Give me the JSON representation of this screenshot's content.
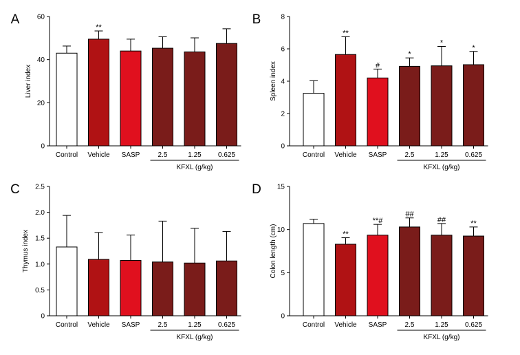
{
  "colors": {
    "Control": "#ffffff",
    "Vehicle": "#b01214",
    "SASP": "#e0101e",
    "KFXL": "#7a1c1a"
  },
  "chart_data": [
    {
      "panel": "A",
      "type": "bar",
      "ylabel": "Liver index",
      "ylim": [
        0,
        60
      ],
      "yticks": [
        "0",
        "20",
        "40",
        "60"
      ],
      "ytick_values": [
        0,
        20,
        40,
        60
      ],
      "categories": [
        "Control",
        "Vehicle",
        "SASP",
        "2.5",
        "1.25",
        "0.625"
      ],
      "group_label": "KFXL (g/kg)",
      "values": [
        43.0,
        49.5,
        44.0,
        45.3,
        43.6,
        47.5
      ],
      "errors": [
        3.3,
        3.8,
        5.5,
        5.3,
        6.5,
        6.8
      ],
      "significance": [
        "",
        "**",
        "",
        "",
        "",
        ""
      ]
    },
    {
      "panel": "B",
      "type": "bar",
      "ylabel": "Spleen index",
      "ylim": [
        0,
        8
      ],
      "yticks": [
        "0",
        "2",
        "4",
        "6",
        "8"
      ],
      "ytick_values": [
        0,
        2,
        4,
        6,
        8
      ],
      "categories": [
        "Control",
        "Vehicle",
        "SASP",
        "2.5",
        "1.25",
        "0.625"
      ],
      "group_label": "KFXL (g/kg)",
      "values": [
        3.25,
        5.65,
        4.2,
        4.92,
        4.95,
        5.02
      ],
      "errors": [
        0.78,
        1.1,
        0.55,
        0.52,
        1.2,
        0.82
      ],
      "significance": [
        "",
        "**",
        "#",
        "*",
        "*",
        "*"
      ]
    },
    {
      "panel": "C",
      "type": "bar",
      "ylabel": "Thymus index",
      "ylim": [
        0,
        2.5
      ],
      "yticks": [
        "0",
        "0.5",
        "1.0",
        "1.5",
        "2.0",
        "2.5"
      ],
      "ytick_values": [
        0,
        0.5,
        1.0,
        1.5,
        2.0,
        2.5
      ],
      "categories": [
        "Control",
        "Vehicle",
        "SASP",
        "2.5",
        "1.25",
        "0.625"
      ],
      "group_label": "KFXL (g/kg)",
      "values": [
        1.33,
        1.09,
        1.07,
        1.04,
        1.02,
        1.06
      ],
      "errors": [
        0.61,
        0.52,
        0.49,
        0.79,
        0.67,
        0.57
      ],
      "significance": [
        "",
        "",
        "",
        "",
        "",
        ""
      ]
    },
    {
      "panel": "D",
      "type": "bar",
      "ylabel": "Colon length (cm)",
      "ylim": [
        0,
        15
      ],
      "yticks": [
        "0",
        "5",
        "10",
        "15"
      ],
      "ytick_values": [
        0,
        5,
        10,
        15
      ],
      "categories": [
        "Control",
        "Vehicle",
        "SASP",
        "2.5",
        "1.25",
        "0.625"
      ],
      "group_label": "KFXL (g/kg)",
      "values": [
        10.7,
        8.3,
        9.35,
        10.3,
        9.35,
        9.25
      ],
      "errors": [
        0.5,
        0.75,
        1.25,
        1.05,
        1.35,
        1.05
      ],
      "significance": [
        "",
        "**",
        "**#",
        "##",
        "##",
        "**"
      ]
    }
  ]
}
